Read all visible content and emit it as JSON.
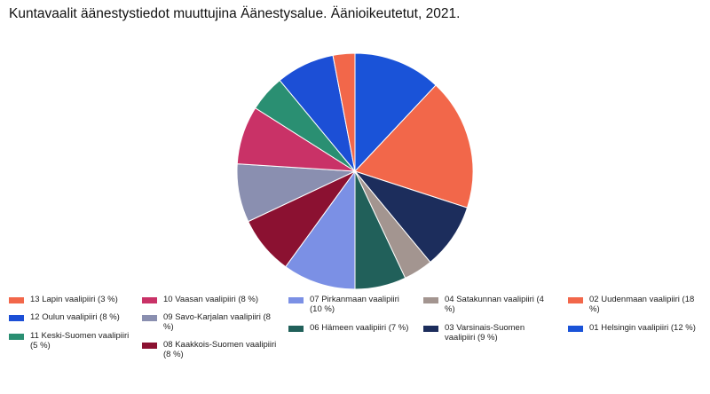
{
  "title": "Kuntavaalit äänestystiedot muuttujina Äänestysalue. Äänioikeutetut, 2021.",
  "chart_data": {
    "type": "pie",
    "start_angle_deg": 0,
    "direction": "clockwise",
    "slices": [
      {
        "label": "01 Helsingin vaalipiiri (12 %)",
        "value": 12,
        "color": "#1a53d8"
      },
      {
        "label": "02 Uudenmaan vaalipiiri (18 %)",
        "value": 18,
        "color": "#f2674a"
      },
      {
        "label": "03 Varsinais-Suomen vaalipiiri (9 %)",
        "value": 9,
        "color": "#1c2d5c"
      },
      {
        "label": "04 Satakunnan vaalipiiri (4 %)",
        "value": 4,
        "color": "#a39590"
      },
      {
        "label": "06 Hämeen vaalipiiri (7 %)",
        "value": 7,
        "color": "#21605a"
      },
      {
        "label": "07 Pirkanmaan vaalipiiri (10 %)",
        "value": 10,
        "color": "#7b90e5"
      },
      {
        "label": "08 Kaakkois-Suomen vaalipiiri (8 %)",
        "value": 8,
        "color": "#8b1131"
      },
      {
        "label": "09 Savo-Karjalan vaalipiiri (8 %)",
        "value": 8,
        "color": "#8a8fb0"
      },
      {
        "label": "10 Vaasan vaalipiiri (8 %)",
        "value": 8,
        "color": "#c93267"
      },
      {
        "label": "11 Keski-Suomen vaalipiiri (5 %)",
        "value": 5,
        "color": "#2a8f72"
      },
      {
        "label": "12 Oulun vaalipiiri (8 %)",
        "value": 8,
        "color": "#1c4fd6"
      },
      {
        "label": "13 Lapin vaalipiiri (3 %)",
        "value": 3,
        "color": "#f2674a"
      }
    ],
    "legend": {
      "position": "bottom",
      "columns": [
        [
          "13 Lapin vaalipiiri (3 %)",
          "12 Oulun vaalipiiri (8 %)",
          "11 Keski-Suomen vaalipiiri (5 %)"
        ],
        [
          "10 Vaasan vaalipiiri (8 %)",
          "09 Savo-Karjalan vaalipiiri (8 %)",
          "08 Kaakkois-Suomen vaalipiiri (8 %)"
        ],
        [
          "07 Pirkanmaan vaalipiiri (10 %)",
          "06 Hämeen vaalipiiri (7 %)"
        ],
        [
          "04 Satakunnan vaalipiiri (4 %)",
          "03 Varsinais-Suomen vaalipiiri (9 %)"
        ],
        [
          "02 Uudenmaan vaalipiiri (18 %)",
          "01 Helsingin vaalipiiri (12 %)"
        ]
      ]
    }
  }
}
